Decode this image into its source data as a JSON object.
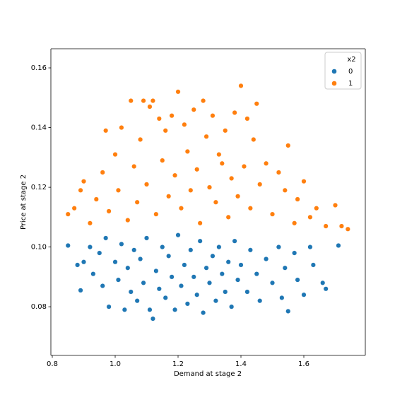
{
  "chart_data": {
    "type": "scatter",
    "xlabel": "Demand at stage 2",
    "ylabel": "Price at stage 2",
    "xlim": [
      0.7955,
      1.7955
    ],
    "ylim": [
      0.0637,
      0.1664
    ],
    "xticks": [
      0.8,
      {
        "value": 1,
        "label": "1.0"
      },
      1.2,
      1.4,
      1.6
    ],
    "yticks": [
      0.08,
      {
        "value": 0.1,
        "label": "0.10"
      },
      0.12,
      0.14,
      0.16
    ],
    "grid": false,
    "legend_title": "x2",
    "legend_position": "upper right",
    "series": [
      {
        "name": "0",
        "color": "#1f77b4",
        "x": [
          0.85,
          0.88,
          0.89,
          0.9,
          0.92,
          0.93,
          0.95,
          0.96,
          0.97,
          0.98,
          1.0,
          1.01,
          1.02,
          1.03,
          1.04,
          1.05,
          1.06,
          1.07,
          1.08,
          1.09,
          1.1,
          1.11,
          1.12,
          1.13,
          1.14,
          1.15,
          1.16,
          1.17,
          1.18,
          1.19,
          1.2,
          1.21,
          1.22,
          1.23,
          1.24,
          1.25,
          1.26,
          1.27,
          1.28,
          1.29,
          1.3,
          1.31,
          1.32,
          1.33,
          1.34,
          1.35,
          1.36,
          1.37,
          1.38,
          1.39,
          1.4,
          1.42,
          1.43,
          1.45,
          1.46,
          1.48,
          1.5,
          1.52,
          1.53,
          1.54,
          1.55,
          1.57,
          1.58,
          1.6,
          1.62,
          1.63,
          1.66,
          1.67,
          1.71
        ],
        "y": [
          0.1005,
          0.094,
          0.0855,
          0.095,
          0.1,
          0.091,
          0.098,
          0.087,
          0.103,
          0.08,
          0.095,
          0.089,
          0.101,
          0.079,
          0.093,
          0.085,
          0.099,
          0.082,
          0.096,
          0.088,
          0.103,
          0.079,
          0.076,
          0.092,
          0.086,
          0.1,
          0.083,
          0.097,
          0.09,
          0.079,
          0.104,
          0.087,
          0.094,
          0.081,
          0.099,
          0.09,
          0.084,
          0.102,
          0.078,
          0.093,
          0.088,
          0.097,
          0.082,
          0.1,
          0.091,
          0.085,
          0.095,
          0.08,
          0.102,
          0.089,
          0.094,
          0.085,
          0.099,
          0.091,
          0.082,
          0.096,
          0.088,
          0.1,
          0.083,
          0.093,
          0.0785,
          0.098,
          0.089,
          0.084,
          0.1,
          0.094,
          0.088,
          0.086,
          0.1005
        ]
      },
      {
        "name": "1",
        "color": "#ff7f0e",
        "x": [
          0.85,
          0.87,
          0.89,
          0.9,
          0.92,
          0.94,
          0.96,
          0.97,
          0.98,
          1.0,
          1.01,
          1.02,
          1.04,
          1.05,
          1.06,
          1.07,
          1.08,
          1.09,
          1.1,
          1.11,
          1.12,
          1.13,
          1.14,
          1.15,
          1.16,
          1.17,
          1.18,
          1.19,
          1.2,
          1.21,
          1.22,
          1.23,
          1.24,
          1.25,
          1.26,
          1.27,
          1.28,
          1.29,
          1.3,
          1.31,
          1.32,
          1.33,
          1.34,
          1.35,
          1.36,
          1.37,
          1.38,
          1.39,
          1.4,
          1.41,
          1.42,
          1.43,
          1.44,
          1.45,
          1.46,
          1.48,
          1.5,
          1.52,
          1.54,
          1.55,
          1.57,
          1.58,
          1.6,
          1.62,
          1.64,
          1.67,
          1.7,
          1.72,
          1.74
        ],
        "y": [
          0.111,
          0.113,
          0.119,
          0.122,
          0.108,
          0.116,
          0.125,
          0.139,
          0.112,
          0.131,
          0.119,
          0.14,
          0.109,
          0.149,
          0.127,
          0.115,
          0.136,
          0.149,
          0.121,
          0.147,
          0.149,
          0.111,
          0.143,
          0.129,
          0.139,
          0.117,
          0.144,
          0.124,
          0.152,
          0.113,
          0.141,
          0.132,
          0.119,
          0.146,
          0.126,
          0.108,
          0.149,
          0.137,
          0.12,
          0.144,
          0.115,
          0.131,
          0.128,
          0.139,
          0.11,
          0.123,
          0.145,
          0.117,
          0.154,
          0.127,
          0.143,
          0.113,
          0.136,
          0.148,
          0.121,
          0.128,
          0.111,
          0.125,
          0.119,
          0.134,
          0.108,
          0.116,
          0.122,
          0.11,
          0.113,
          0.107,
          0.114,
          0.107,
          0.106
        ]
      }
    ]
  }
}
